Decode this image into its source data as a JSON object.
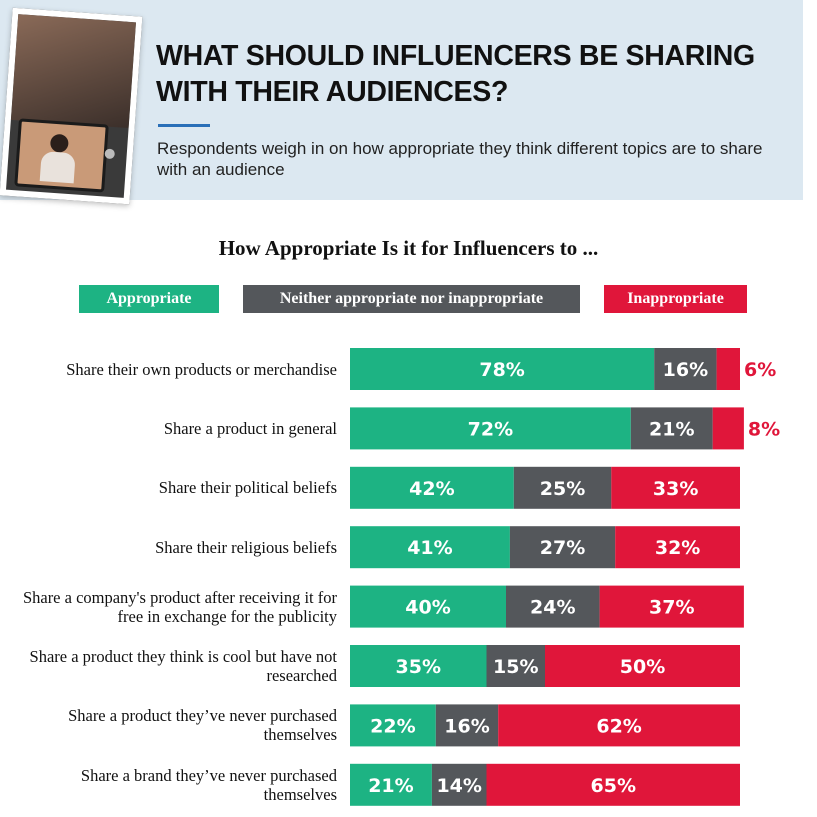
{
  "header": {
    "title": "WHAT SHOULD INFLUENCERS BE SHARING WITH THEIR AUDIENCES?",
    "subtitle": "Respondents weigh in on how appropriate they think different topics are to share with an audience"
  },
  "colors": {
    "appropriate": "#1db383",
    "neither": "#54575b",
    "inappropriate": "#e0163a",
    "header_bg": "#dce8f1",
    "accent": "#2a6fb8"
  },
  "chart_data": {
    "type": "bar",
    "orientation": "horizontal",
    "stacked": true,
    "title": "How Appropriate Is it for Influencers to ...",
    "categories": [
      "Share their own products or merchandise",
      "Share a product in general",
      "Share their political beliefs",
      "Share their religious beliefs",
      "Share a company's product after receiving it for free in exchange for the publicity",
      "Share a product they think is cool but have not researched",
      "Share a product they’ve never purchased themselves",
      "Share a brand they’ve never purchased themselves"
    ],
    "series": [
      {
        "name": "Appropriate",
        "values": [
          78,
          72,
          42,
          41,
          40,
          35,
          22,
          21
        ],
        "labels": [
          "78%",
          "72%",
          "42%",
          "41%",
          "40%",
          "35%",
          "22%",
          "21%"
        ]
      },
      {
        "name": "Neither appropriate nor inappropriate",
        "values": [
          16,
          21,
          25,
          27,
          24,
          15,
          16,
          14
        ],
        "labels": [
          "16%",
          "21%",
          "25%",
          "27%",
          "24%",
          "15%",
          "16%",
          "14%"
        ]
      },
      {
        "name": "Inappropriate",
        "values": [
          6,
          8,
          33,
          32,
          37,
          50,
          62,
          65
        ],
        "labels": [
          "6%",
          "8%",
          "33%",
          "32%",
          "37%",
          "50%",
          "62%",
          "65%"
        ]
      }
    ],
    "xlim": [
      0,
      100
    ],
    "legend_position": "top"
  }
}
